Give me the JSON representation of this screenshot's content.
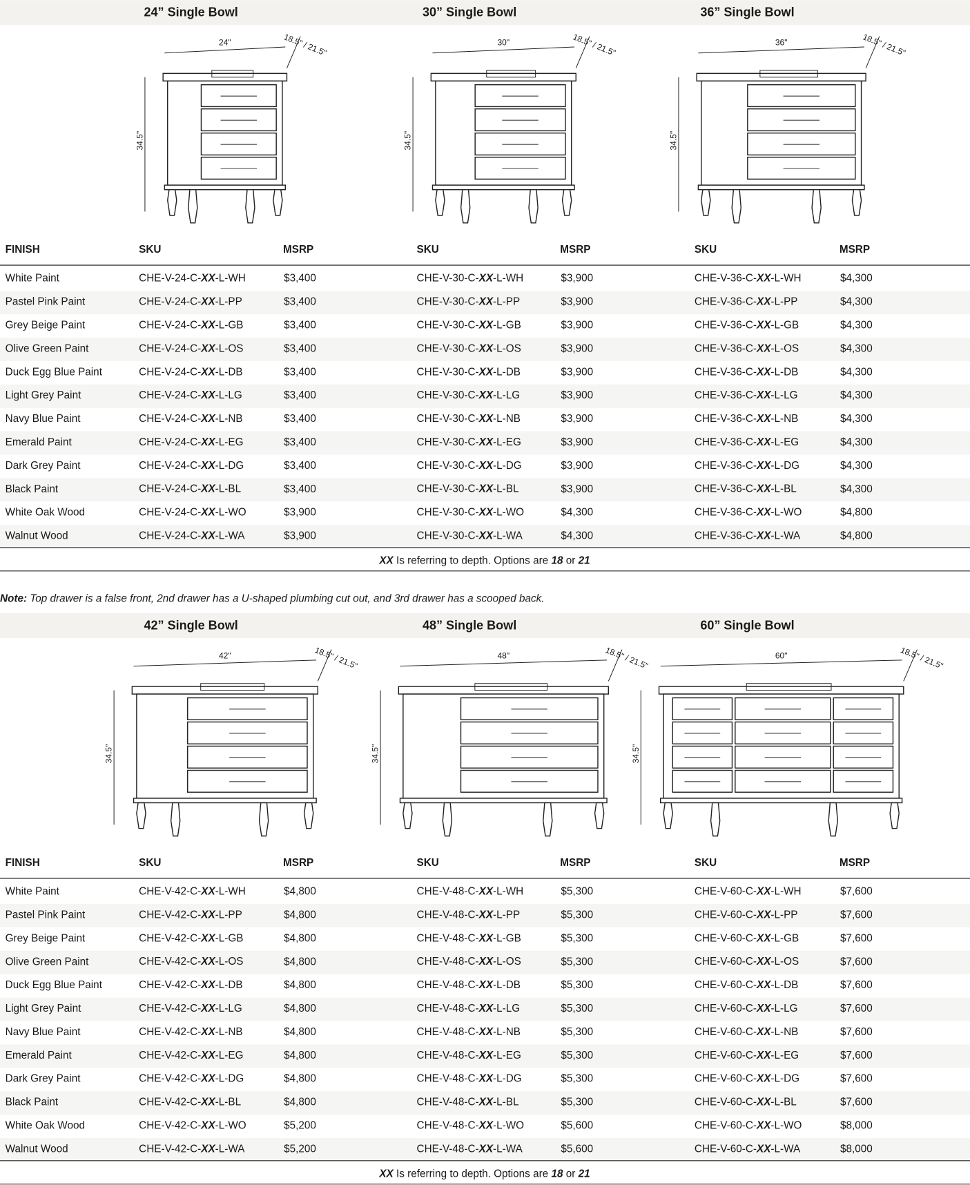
{
  "header_labels": {
    "finish": "FINISH",
    "sku": "SKU",
    "msrp": "MSRP"
  },
  "note": [
    "Note:",
    " Top drawer is a false front, 2nd drawer has a U-shaped plumbing cut out, and 3rd drawer has a scooped back."
  ],
  "sections": [
    {
      "finishes": [
        "White Paint",
        "Pastel Pink Paint",
        "Grey Beige Paint",
        "Olive Green Paint",
        "Duck Egg Blue Paint",
        "Light Grey Paint",
        "Navy Blue Paint",
        "Emerald Paint",
        "Dark Grey Paint",
        "Black Paint",
        "White Oak Wood",
        "Walnut Wood"
      ],
      "footnote": [
        "XX",
        " Is referring to depth. Options are ",
        "18",
        " or ",
        "21"
      ],
      "products": [
        {
          "title": "24” Single Bowl",
          "width_label": "24\"",
          "depth_label": "18.5\" / 21.5\"",
          "height_label": "34.5\"",
          "skus": [
            "CHE-V-24-C-XX-L-WH",
            "CHE-V-24-C-XX-L-PP",
            "CHE-V-24-C-XX-L-GB",
            "CHE-V-24-C-XX-L-OS",
            "CHE-V-24-C-XX-L-DB",
            "CHE-V-24-C-XX-L-LG",
            "CHE-V-24-C-XX-L-NB",
            "CHE-V-24-C-XX-L-EG",
            "CHE-V-24-C-XX-L-DG",
            "CHE-V-24-C-XX-L-BL",
            "CHE-V-24-C-XX-L-WO",
            "CHE-V-24-C-XX-L-WA"
          ],
          "msrp": [
            "$3,400",
            "$3,400",
            "$3,400",
            "$3,400",
            "$3,400",
            "$3,400",
            "$3,400",
            "$3,400",
            "$3,400",
            "$3,400",
            "$3,900",
            "$3,900"
          ]
        },
        {
          "title": "30” Single Bowl",
          "width_label": "30\"",
          "depth_label": "18.5\" / 21.5\"",
          "height_label": "34.5\"",
          "skus": [
            "CHE-V-30-C-XX-L-WH",
            "CHE-V-30-C-XX-L-PP",
            "CHE-V-30-C-XX-L-GB",
            "CHE-V-30-C-XX-L-OS",
            "CHE-V-30-C-XX-L-DB",
            "CHE-V-30-C-XX-L-LG",
            "CHE-V-30-C-XX-L-NB",
            "CHE-V-30-C-XX-L-EG",
            "CHE-V-30-C-XX-L-DG",
            "CHE-V-30-C-XX-L-BL",
            "CHE-V-30-C-XX-L-WO",
            "CHE-V-30-C-XX-L-WA"
          ],
          "msrp": [
            "$3,900",
            "$3,900",
            "$3,900",
            "$3,900",
            "$3,900",
            "$3,900",
            "$3,900",
            "$3,900",
            "$3,900",
            "$3,900",
            "$4,300",
            "$4,300"
          ]
        },
        {
          "title": "36” Single Bowl",
          "width_label": "36\"",
          "depth_label": "18.5\" / 21.5\"",
          "height_label": "34.5\"",
          "skus": [
            "CHE-V-36-C-XX-L-WH",
            "CHE-V-36-C-XX-L-PP",
            "CHE-V-36-C-XX-L-GB",
            "CHE-V-36-C-XX-L-OS",
            "CHE-V-36-C-XX-L-DB",
            "CHE-V-36-C-XX-L-LG",
            "CHE-V-36-C-XX-L-NB",
            "CHE-V-36-C-XX-L-EG",
            "CHE-V-36-C-XX-L-DG",
            "CHE-V-36-C-XX-L-BL",
            "CHE-V-36-C-XX-L-WO",
            "CHE-V-36-C-XX-L-WA"
          ],
          "msrp": [
            "$4,300",
            "$4,300",
            "$4,300",
            "$4,300",
            "$4,300",
            "$4,300",
            "$4,300",
            "$4,300",
            "$4,300",
            "$4,300",
            "$4,800",
            "$4,800"
          ]
        }
      ]
    },
    {
      "finishes": [
        "White Paint",
        "Pastel Pink Paint",
        "Grey Beige Paint",
        "Olive Green Paint",
        "Duck Egg Blue Paint",
        "Light Grey Paint",
        "Navy Blue Paint",
        "Emerald Paint",
        "Dark Grey Paint",
        "Black Paint",
        "White Oak Wood",
        "Walnut Wood"
      ],
      "footnote": [
        "XX",
        " Is referring to depth. Options are ",
        "18",
        " or ",
        "21"
      ],
      "products": [
        {
          "title": "42” Single Bowl",
          "width_label": "42\"",
          "depth_label": "18.5\" / 21.5\"",
          "height_label": "34.5\"",
          "skus": [
            "CHE-V-42-C-XX-L-WH",
            "CHE-V-42-C-XX-L-PP",
            "CHE-V-42-C-XX-L-GB",
            "CHE-V-42-C-XX-L-OS",
            "CHE-V-42-C-XX-L-DB",
            "CHE-V-42-C-XX-L-LG",
            "CHE-V-42-C-XX-L-NB",
            "CHE-V-42-C-XX-L-EG",
            "CHE-V-42-C-XX-L-DG",
            "CHE-V-42-C-XX-L-BL",
            "CHE-V-42-C-XX-L-WO",
            "CHE-V-42-C-XX-L-WA"
          ],
          "msrp": [
            "$4,800",
            "$4,800",
            "$4,800",
            "$4,800",
            "$4,800",
            "$4,800",
            "$4,800",
            "$4,800",
            "$4,800",
            "$4,800",
            "$5,200",
            "$5,200"
          ]
        },
        {
          "title": "48” Single Bowl",
          "width_label": "48\"",
          "depth_label": "18.5\" / 21.5\"",
          "height_label": "34.5\"",
          "skus": [
            "CHE-V-48-C-XX-L-WH",
            "CHE-V-48-C-XX-L-PP",
            "CHE-V-48-C-XX-L-GB",
            "CHE-V-48-C-XX-L-OS",
            "CHE-V-48-C-XX-L-DB",
            "CHE-V-48-C-XX-L-LG",
            "CHE-V-48-C-XX-L-NB",
            "CHE-V-48-C-XX-L-EG",
            "CHE-V-48-C-XX-L-DG",
            "CHE-V-48-C-XX-L-BL",
            "CHE-V-48-C-XX-L-WO",
            "CHE-V-48-C-XX-L-WA"
          ],
          "msrp": [
            "$5,300",
            "$5,300",
            "$5,300",
            "$5,300",
            "$5,300",
            "$5,300",
            "$5,300",
            "$5,300",
            "$5,300",
            "$5,300",
            "$5,600",
            "$5,600"
          ]
        },
        {
          "title": "60” Single Bowl",
          "width_label": "60\"",
          "depth_label": "18.5\" / 21.5\"",
          "height_label": "34.5\"",
          "skus": [
            "CHE-V-60-C-XX-L-WH",
            "CHE-V-60-C-XX-L-PP",
            "CHE-V-60-C-XX-L-GB",
            "CHE-V-60-C-XX-L-OS",
            "CHE-V-60-C-XX-L-DB",
            "CHE-V-60-C-XX-L-LG",
            "CHE-V-60-C-XX-L-NB",
            "CHE-V-60-C-XX-L-EG",
            "CHE-V-60-C-XX-L-DG",
            "CHE-V-60-C-XX-L-BL",
            "CHE-V-60-C-XX-L-WO",
            "CHE-V-60-C-XX-L-WA"
          ],
          "msrp": [
            "$7,600",
            "$7,600",
            "$7,600",
            "$7,600",
            "$7,600",
            "$7,600",
            "$7,600",
            "$7,600",
            "$7,600",
            "$7,600",
            "$8,000",
            "$8,000"
          ]
        }
      ]
    }
  ]
}
